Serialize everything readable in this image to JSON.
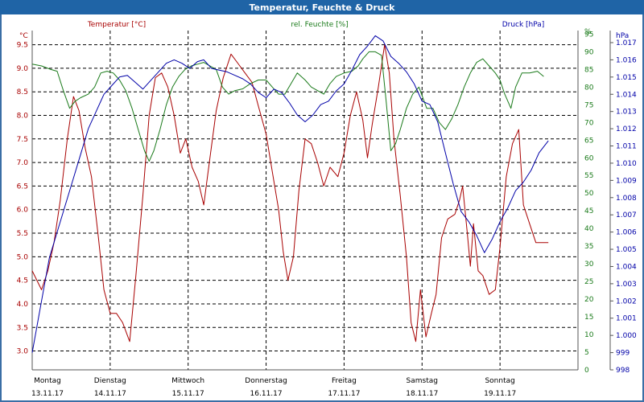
{
  "chart_data": {
    "type": "line",
    "title": "Temperatur, Feuchte & Druck",
    "x_range": [
      0,
      7
    ],
    "x_ticks": [
      {
        "x": 0,
        "day": "Montag",
        "date": "13.11.17"
      },
      {
        "x": 1,
        "day": "Dienstag",
        "date": "14.11.17"
      },
      {
        "x": 2,
        "day": "Mittwoch",
        "date": "15.11.17"
      },
      {
        "x": 3,
        "day": "Donnerstag",
        "date": "16.11.17"
      },
      {
        "x": 4,
        "day": "Freitag",
        "date": "17.11.17"
      },
      {
        "x": 5,
        "day": "Samstag",
        "date": "18.11.17"
      },
      {
        "x": 6,
        "day": "Sonntag",
        "date": "19.11.17"
      }
    ],
    "axes": {
      "temperature": {
        "label": "°C",
        "ylim": [
          2.6,
          9.8
        ],
        "ticks": [
          "3.0",
          "3.5",
          "4.0",
          "4.5",
          "5.0",
          "5.5",
          "6.0",
          "6.5",
          "7.0",
          "7.5",
          "8.0",
          "8.5",
          "9.0",
          "9.5"
        ],
        "color": "#a80000"
      },
      "humidity": {
        "label": "%",
        "ylim": [
          0,
          96
        ],
        "ticks": [
          "0",
          "5",
          "10",
          "15",
          "20",
          "25",
          "30",
          "35",
          "40",
          "45",
          "50",
          "55",
          "60",
          "65",
          "70",
          "75",
          "80",
          "85",
          "90",
          "95",
          "%"
        ],
        "color": "#1a7a1a"
      },
      "pressure": {
        "label": "hPa",
        "ylim": [
          998,
          1017.7
        ],
        "ticks": [
          "998",
          "999",
          "1.000",
          "1.001",
          "1.002",
          "1.003",
          "1.004",
          "1.005",
          "1.006",
          "1.007",
          "1.008",
          "1.009",
          "1.010",
          "1.011",
          "1.012",
          "1.013",
          "1.014",
          "1.015",
          "1.016",
          "1.017"
        ],
        "color": "#0000a8"
      }
    },
    "series": [
      {
        "name": "Temperatur [°C]",
        "axis": "temperature",
        "color": "#a80000",
        "points": [
          [
            0,
            4.7
          ],
          [
            0.12,
            4.3
          ],
          [
            0.2,
            4.7
          ],
          [
            0.28,
            5.3
          ],
          [
            0.36,
            6.2
          ],
          [
            0.45,
            7.5
          ],
          [
            0.53,
            8.4
          ],
          [
            0.6,
            8.1
          ],
          [
            0.68,
            7.3
          ],
          [
            0.76,
            6.7
          ],
          [
            0.85,
            5.4
          ],
          [
            0.92,
            4.3
          ],
          [
            1.0,
            3.8
          ],
          [
            1.08,
            3.8
          ],
          [
            1.16,
            3.6
          ],
          [
            1.25,
            3.2
          ],
          [
            1.33,
            4.6
          ],
          [
            1.42,
            6.3
          ],
          [
            1.5,
            8.0
          ],
          [
            1.58,
            8.8
          ],
          [
            1.66,
            8.9
          ],
          [
            1.74,
            8.6
          ],
          [
            1.82,
            8.0
          ],
          [
            1.9,
            7.2
          ],
          [
            1.97,
            7.5
          ],
          [
            2.05,
            6.9
          ],
          [
            2.13,
            6.6
          ],
          [
            2.2,
            6.1
          ],
          [
            2.28,
            7.1
          ],
          [
            2.36,
            8.1
          ],
          [
            2.45,
            8.8
          ],
          [
            2.55,
            9.3
          ],
          [
            2.64,
            9.1
          ],
          [
            2.73,
            8.9
          ],
          [
            2.82,
            8.7
          ],
          [
            2.9,
            8.2
          ],
          [
            3.0,
            7.6
          ],
          [
            3.08,
            6.8
          ],
          [
            3.16,
            6.0
          ],
          [
            3.22,
            5.1
          ],
          [
            3.28,
            4.5
          ],
          [
            3.35,
            5.0
          ],
          [
            3.42,
            6.4
          ],
          [
            3.5,
            7.5
          ],
          [
            3.58,
            7.4
          ],
          [
            3.66,
            7.0
          ],
          [
            3.74,
            6.5
          ],
          [
            3.82,
            6.9
          ],
          [
            3.92,
            6.7
          ],
          [
            4.0,
            7.2
          ],
          [
            4.08,
            8.0
          ],
          [
            4.16,
            8.5
          ],
          [
            4.24,
            7.9
          ],
          [
            4.3,
            7.1
          ],
          [
            4.36,
            7.8
          ],
          [
            4.44,
            8.6
          ],
          [
            4.52,
            9.5
          ],
          [
            4.58,
            8.9
          ],
          [
            4.64,
            7.5
          ],
          [
            4.72,
            6.3
          ],
          [
            4.8,
            5.0
          ],
          [
            4.86,
            3.6
          ],
          [
            4.92,
            3.2
          ],
          [
            4.98,
            4.3
          ],
          [
            5.05,
            3.3
          ],
          [
            5.12,
            3.8
          ],
          [
            5.18,
            4.2
          ],
          [
            5.25,
            5.4
          ],
          [
            5.33,
            5.8
          ],
          [
            5.42,
            5.9
          ],
          [
            5.48,
            6.2
          ],
          [
            5.52,
            6.5
          ],
          [
            5.58,
            5.5
          ],
          [
            5.62,
            4.8
          ],
          [
            5.66,
            5.7
          ],
          [
            5.72,
            4.7
          ],
          [
            5.78,
            4.6
          ],
          [
            5.86,
            4.2
          ],
          [
            5.94,
            4.3
          ],
          [
            6.0,
            5.2
          ],
          [
            6.08,
            6.7
          ],
          [
            6.16,
            7.4
          ],
          [
            6.24,
            7.7
          ],
          [
            6.3,
            6.1
          ],
          [
            6.38,
            5.7
          ],
          [
            6.46,
            5.3
          ],
          [
            6.55,
            5.3
          ],
          [
            6.62,
            5.3
          ]
        ]
      },
      {
        "name": "rel. Feuchte [%]",
        "axis": "humidity",
        "color": "#1a7a1a",
        "points": [
          [
            0,
            86.5
          ],
          [
            0.12,
            86
          ],
          [
            0.24,
            85
          ],
          [
            0.32,
            84.5
          ],
          [
            0.4,
            79
          ],
          [
            0.48,
            74
          ],
          [
            0.55,
            76
          ],
          [
            0.62,
            77
          ],
          [
            0.72,
            78
          ],
          [
            0.8,
            80
          ],
          [
            0.88,
            84
          ],
          [
            0.96,
            84.5
          ],
          [
            1.04,
            84
          ],
          [
            1.12,
            82
          ],
          [
            1.2,
            79
          ],
          [
            1.28,
            74
          ],
          [
            1.36,
            68
          ],
          [
            1.44,
            62
          ],
          [
            1.5,
            59
          ],
          [
            1.56,
            62
          ],
          [
            1.64,
            68
          ],
          [
            1.72,
            75
          ],
          [
            1.8,
            80
          ],
          [
            1.88,
            83
          ],
          [
            1.96,
            85
          ],
          [
            2.04,
            86
          ],
          [
            2.12,
            86.5
          ],
          [
            2.2,
            87
          ],
          [
            2.28,
            86
          ],
          [
            2.36,
            85
          ],
          [
            2.44,
            80
          ],
          [
            2.52,
            78
          ],
          [
            2.6,
            79
          ],
          [
            2.7,
            79.5
          ],
          [
            2.8,
            81
          ],
          [
            2.9,
            82
          ],
          [
            3.0,
            82
          ],
          [
            3.08,
            80
          ],
          [
            3.16,
            78
          ],
          [
            3.24,
            78
          ],
          [
            3.32,
            81
          ],
          [
            3.4,
            84
          ],
          [
            3.5,
            82
          ],
          [
            3.58,
            80
          ],
          [
            3.66,
            79
          ],
          [
            3.74,
            78
          ],
          [
            3.82,
            81
          ],
          [
            3.9,
            83
          ],
          [
            4.0,
            84
          ],
          [
            4.1,
            84.5
          ],
          [
            4.18,
            86
          ],
          [
            4.24,
            88
          ],
          [
            4.32,
            90
          ],
          [
            4.4,
            90
          ],
          [
            4.48,
            89
          ],
          [
            4.54,
            76
          ],
          [
            4.6,
            62
          ],
          [
            4.66,
            64
          ],
          [
            4.72,
            68
          ],
          [
            4.8,
            74
          ],
          [
            4.88,
            78
          ],
          [
            4.96,
            80
          ],
          [
            5.06,
            74
          ],
          [
            5.14,
            74
          ],
          [
            5.22,
            70
          ],
          [
            5.3,
            68
          ],
          [
            5.38,
            71
          ],
          [
            5.46,
            75
          ],
          [
            5.54,
            80
          ],
          [
            5.62,
            84
          ],
          [
            5.7,
            87
          ],
          [
            5.78,
            88
          ],
          [
            5.86,
            86
          ],
          [
            5.94,
            84
          ],
          [
            6.0,
            82
          ],
          [
            6.06,
            78
          ],
          [
            6.14,
            74
          ],
          [
            6.2,
            80
          ],
          [
            6.28,
            84
          ],
          [
            6.38,
            84
          ],
          [
            6.48,
            84.5
          ],
          [
            6.56,
            83
          ]
        ]
      },
      {
        "name": "Druck [hPa]",
        "axis": "pressure",
        "color": "#0000a8",
        "points": [
          [
            0,
            999
          ],
          [
            0.12,
            1002
          ],
          [
            0.22,
            1004.5
          ],
          [
            0.32,
            1006
          ],
          [
            0.42,
            1007.5
          ],
          [
            0.52,
            1009
          ],
          [
            0.62,
            1010.5
          ],
          [
            0.72,
            1012
          ],
          [
            0.82,
            1013
          ],
          [
            0.92,
            1014
          ],
          [
            1.02,
            1014.5
          ],
          [
            1.12,
            1015
          ],
          [
            1.22,
            1015.1
          ],
          [
            1.32,
            1014.7
          ],
          [
            1.42,
            1014.3
          ],
          [
            1.52,
            1014.8
          ],
          [
            1.62,
            1015.3
          ],
          [
            1.72,
            1015.8
          ],
          [
            1.82,
            1016
          ],
          [
            1.92,
            1015.8
          ],
          [
            2.02,
            1015.5
          ],
          [
            2.12,
            1015.9
          ],
          [
            2.2,
            1016
          ],
          [
            2.3,
            1015.5
          ],
          [
            2.4,
            1015.4
          ],
          [
            2.5,
            1015.3
          ],
          [
            2.6,
            1015.1
          ],
          [
            2.7,
            1014.9
          ],
          [
            2.8,
            1014.6
          ],
          [
            2.9,
            1014.1
          ],
          [
            3.0,
            1013.8
          ],
          [
            3.1,
            1014.3
          ],
          [
            3.2,
            1014.1
          ],
          [
            3.3,
            1013.5
          ],
          [
            3.4,
            1012.8
          ],
          [
            3.5,
            1012.4
          ],
          [
            3.6,
            1012.8
          ],
          [
            3.7,
            1013.4
          ],
          [
            3.8,
            1013.6
          ],
          [
            3.9,
            1014.2
          ],
          [
            4.0,
            1014.6
          ],
          [
            4.1,
            1015.4
          ],
          [
            4.2,
            1016.3
          ],
          [
            4.3,
            1016.8
          ],
          [
            4.4,
            1017.4
          ],
          [
            4.5,
            1017.1
          ],
          [
            4.6,
            1016.2
          ],
          [
            4.7,
            1015.8
          ],
          [
            4.8,
            1015.3
          ],
          [
            4.9,
            1014.6
          ],
          [
            5.0,
            1013.6
          ],
          [
            5.1,
            1013.4
          ],
          [
            5.2,
            1012.4
          ],
          [
            5.3,
            1010.6
          ],
          [
            5.4,
            1008.8
          ],
          [
            5.5,
            1007.2
          ],
          [
            5.6,
            1006.6
          ],
          [
            5.7,
            1005.8
          ],
          [
            5.8,
            1004.8
          ],
          [
            5.9,
            1005.6
          ],
          [
            6.0,
            1006.6
          ],
          [
            6.1,
            1007.4
          ],
          [
            6.2,
            1008.4
          ],
          [
            6.3,
            1008.9
          ],
          [
            6.4,
            1009.6
          ],
          [
            6.5,
            1010.6
          ],
          [
            6.62,
            1011.3
          ]
        ]
      }
    ],
    "legend": {
      "temperature": "Temperatur [°C]",
      "humidity": "rel. Feuchte [%]",
      "pressure": "Druck [hPa]"
    }
  }
}
